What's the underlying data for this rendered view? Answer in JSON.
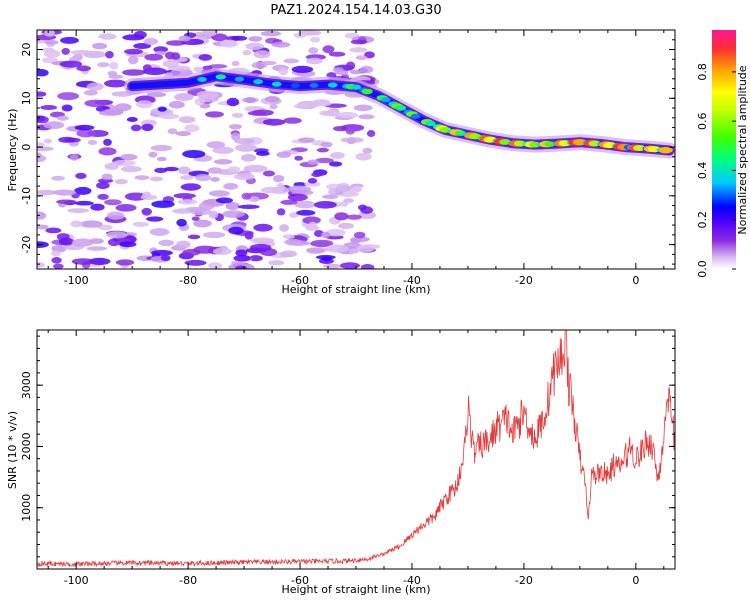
{
  "title": "PAZ1.2024.154.14.03.G30",
  "chart_data": [
    {
      "type": "heatmap",
      "xlabel": "Height of straight line (km)",
      "ylabel": "Frequency (Hz)",
      "xlim": [
        -107,
        7
      ],
      "ylim": [
        -25,
        24
      ],
      "xticks": [
        -100,
        -80,
        -60,
        -40,
        -20,
        0
      ],
      "yticks": [
        -20,
        -10,
        0,
        10,
        20
      ],
      "colorbar": {
        "label": "Normalized spectral amplitude",
        "ticks": [
          0.0,
          0.2,
          0.4,
          0.6,
          0.8
        ],
        "tick_labels": [
          "0.0",
          "0.2",
          "0.4",
          "0.6",
          "0.8"
        ],
        "range": [
          0,
          0.97
        ],
        "colormap": [
          "#ffffff",
          "#d7b6f0",
          "#8a2be2",
          "#4b00ff",
          "#0000ff",
          "#00c8ff",
          "#00ff7f",
          "#7fff00",
          "#ffff00",
          "#ffa500",
          "#ff3030",
          "#ff1493"
        ]
      },
      "ridge": {
        "description": "Frequency of spectral maximum vs height",
        "x": [
          -90,
          -80,
          -75,
          -70,
          -65,
          -60,
          -55,
          -50,
          -46,
          -42,
          -38,
          -34,
          -30,
          -26,
          -22,
          -18,
          -14,
          -10,
          -6,
          -2,
          2,
          6
        ],
        "y": [
          12.5,
          13.2,
          14.5,
          13.8,
          13.0,
          12.5,
          12.8,
          12.3,
          10.5,
          8.0,
          5.5,
          3.5,
          2.5,
          1.5,
          0.8,
          0.5,
          0.7,
          1.0,
          0.6,
          0.0,
          -0.3,
          -0.7
        ],
        "amplitude": [
          0.2,
          0.3,
          0.45,
          0.35,
          0.4,
          0.3,
          0.35,
          0.55,
          0.5,
          0.6,
          0.55,
          0.75,
          0.85,
          0.9,
          0.95,
          0.7,
          0.9,
          0.95,
          0.9,
          0.95,
          0.9,
          0.8
        ]
      },
      "noise_region_x": [
        -107,
        -47
      ]
    },
    {
      "type": "line",
      "xlabel": "Height of straight line (km)",
      "ylabel": "SNR (10 * v/v)",
      "xlim": [
        -107,
        7
      ],
      "ylim": [
        0,
        3900
      ],
      "xticks": [
        -100,
        -80,
        -60,
        -40,
        -20,
        0
      ],
      "yticks": [
        1000,
        2000,
        3000
      ],
      "color": "#e8393a",
      "x": [
        -107,
        -100,
        -90,
        -80,
        -70,
        -60,
        -52,
        -48,
        -45,
        -42,
        -40,
        -38,
        -36,
        -34,
        -32,
        -30.5,
        -30,
        -29,
        -28,
        -26,
        -25,
        -23,
        -22,
        -20,
        -18,
        -16,
        -15,
        -14,
        -13,
        -12.5,
        -12,
        -11,
        -10,
        -9,
        -8.5,
        -8,
        -7,
        -6,
        -5,
        -4,
        -3,
        -2,
        -1,
        0,
        1,
        2,
        3,
        4,
        5,
        6,
        7
      ],
      "y": [
        90,
        80,
        100,
        90,
        110,
        120,
        130,
        160,
        250,
        380,
        560,
        720,
        850,
        1150,
        1350,
        2000,
        2700,
        1900,
        2000,
        2100,
        2300,
        2450,
        2200,
        2550,
        2100,
        2600,
        3100,
        3350,
        3500,
        3900,
        3000,
        2500,
        1800,
        1400,
        750,
        1500,
        1550,
        1600,
        1500,
        1700,
        1650,
        1800,
        2000,
        1800,
        1900,
        2100,
        2000,
        1450,
        2200,
        2700,
        2050
      ]
    }
  ]
}
